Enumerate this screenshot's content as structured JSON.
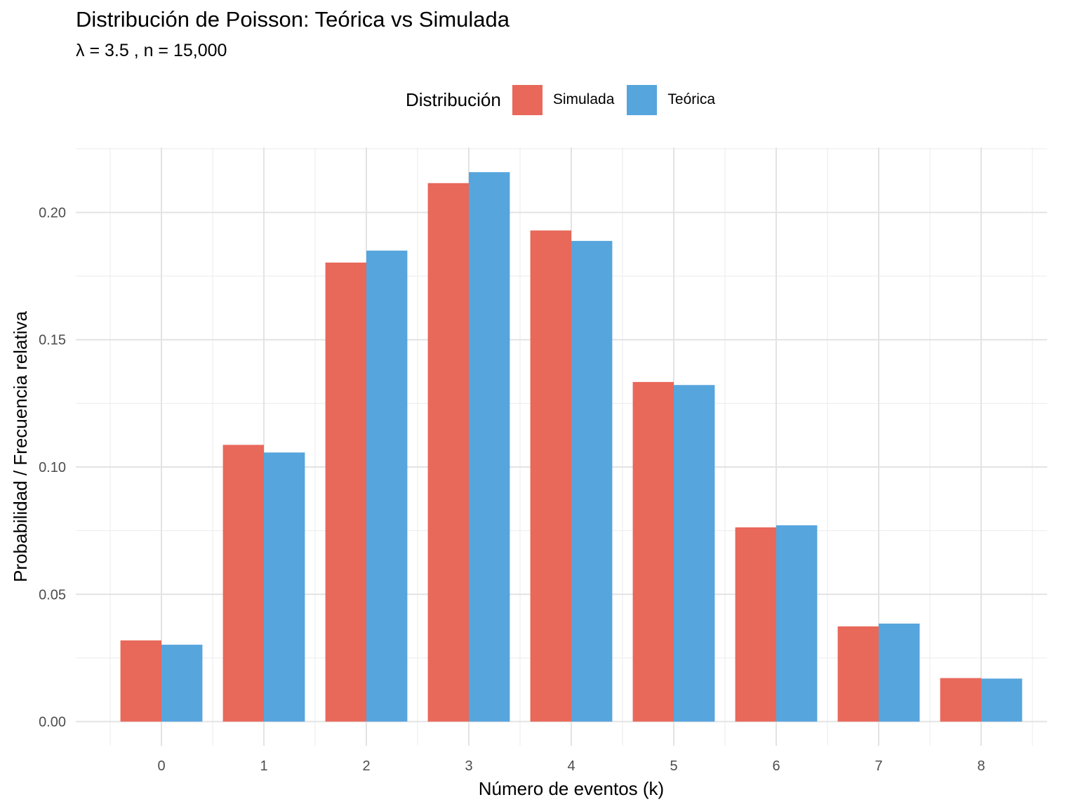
{
  "chart_data": {
    "type": "bar",
    "title": "Distribución de Poisson: Teórica vs Simulada",
    "subtitle": "λ = 3.5 , n = 15,000",
    "xlabel": "Número de eventos (k)",
    "ylabel": "Probabilidad / Frecuencia relativa",
    "categories": [
      "0",
      "1",
      "2",
      "3",
      "4",
      "5",
      "6",
      "7",
      "8"
    ],
    "series": [
      {
        "name": "Simulada",
        "color": "#E8685A",
        "values": [
          0.0319,
          0.1087,
          0.1803,
          0.2115,
          0.1929,
          0.1334,
          0.0763,
          0.0374,
          0.0171
        ]
      },
      {
        "name": "Teórica",
        "color": "#56A5DD",
        "values": [
          0.0302,
          0.1057,
          0.185,
          0.2158,
          0.1888,
          0.1322,
          0.0771,
          0.0385,
          0.0169
        ]
      }
    ],
    "yticks": [
      "0.00",
      "0.05",
      "0.10",
      "0.15",
      "0.20"
    ],
    "ylim": [
      -0.0095,
      0.2255
    ],
    "legend": {
      "title": "Distribución",
      "placement": "top"
    },
    "grid": true
  }
}
